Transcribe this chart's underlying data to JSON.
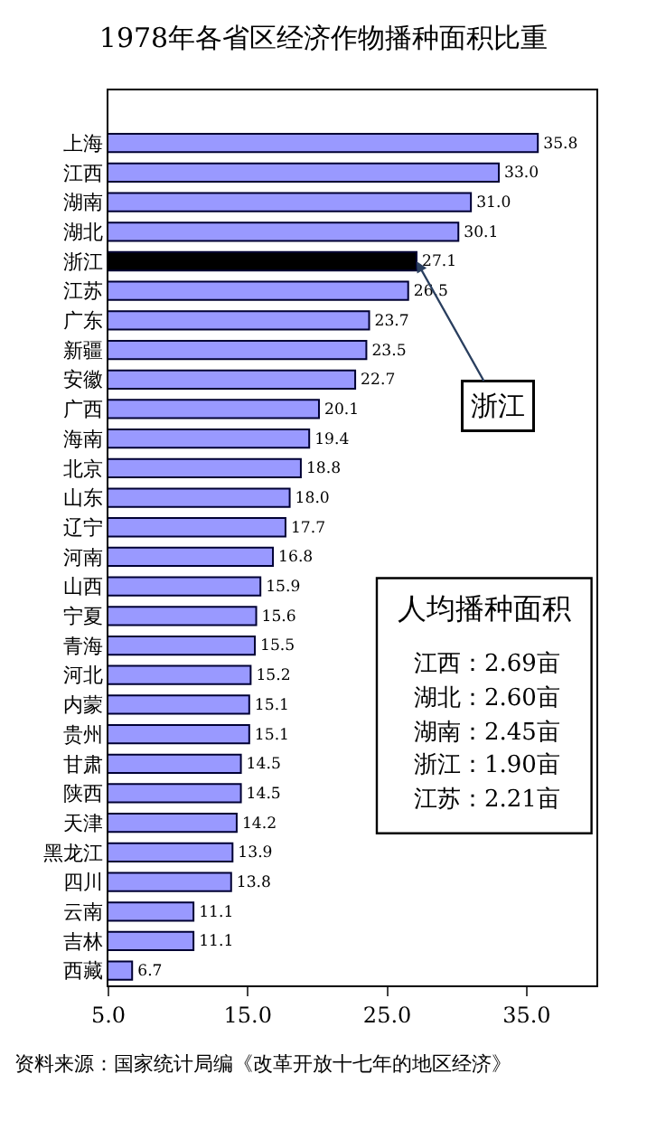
{
  "chart_data": {
    "type": "bar",
    "orientation": "horizontal",
    "title": "1978年各省区经济作物播种面积比重",
    "categories": [
      "上海",
      "江西",
      "湖南",
      "湖北",
      "浙江",
      "江苏",
      "广东",
      "新疆",
      "安徽",
      "广西",
      "海南",
      "北京",
      "山东",
      "辽宁",
      "河南",
      "山西",
      "宁夏",
      "青海",
      "河北",
      "内蒙",
      "贵州",
      "甘肃",
      "陕西",
      "天津",
      "黑龙江",
      "四川",
      "云南",
      "吉林",
      "西藏"
    ],
    "values": [
      35.8,
      33.0,
      31.0,
      30.1,
      27.1,
      26.5,
      23.7,
      23.5,
      22.7,
      20.1,
      19.4,
      18.8,
      18.0,
      17.7,
      16.8,
      15.9,
      15.6,
      15.5,
      15.2,
      15.1,
      15.1,
      14.5,
      14.5,
      14.2,
      13.9,
      13.8,
      11.1,
      11.1,
      6.7
    ],
    "colors": [
      "#9999ff",
      "#9999ff",
      "#9999ff",
      "#9999ff",
      "#000000",
      "#9999ff",
      "#9999ff",
      "#9999ff",
      "#9999ff",
      "#9999ff",
      "#9999ff",
      "#9999ff",
      "#9999ff",
      "#9999ff",
      "#9999ff",
      "#9999ff",
      "#9999ff",
      "#9999ff",
      "#9999ff",
      "#9999ff",
      "#9999ff",
      "#9999ff",
      "#9999ff",
      "#9999ff",
      "#9999ff",
      "#9999ff",
      "#9999ff",
      "#9999ff",
      "#9999ff"
    ],
    "xlim": [
      5,
      40
    ],
    "xticks": [
      {
        "value": 5,
        "label": "5.0"
      },
      {
        "value": 15,
        "label": "15.0"
      },
      {
        "value": 25,
        "label": "25.0"
      },
      {
        "value": 35,
        "label": "35.0"
      }
    ],
    "value_labels": [
      "35.8",
      "33.0",
      "31.0",
      "30.1",
      "27.1",
      "26.5",
      "23.7",
      "23.5",
      "22.7",
      "20.1",
      "19.4",
      "18.8",
      "18.0",
      "17.7",
      "16.8",
      "15.9",
      "15.6",
      "15.5",
      "15.2",
      "15.1",
      "15.1",
      "14.5",
      "14.5",
      "14.2",
      "13.9",
      "13.8",
      "11.1",
      "11.1",
      "6.7"
    ],
    "legend": false,
    "annotations": [
      {
        "text": "浙江",
        "x": 27.1,
        "y": "浙江"
      },
      "人均播种面积",
      "江西：2.69亩",
      "湖北：2.60亩",
      "湖南：2.45亩",
      "浙江：1.90亩",
      "江苏：2.21亩",
      "资料来源：国家统计局编《改革开放十七年的地区经济》"
    ]
  }
}
